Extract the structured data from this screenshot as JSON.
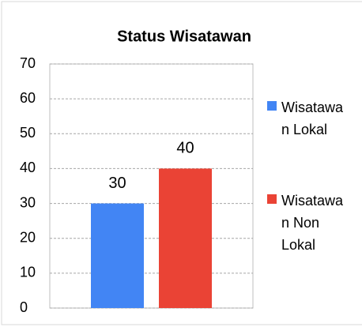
{
  "chart_data": {
    "type": "bar",
    "title": "Status Wisatawan",
    "categories": [
      null
    ],
    "series": [
      {
        "name": "Wisatawan Lokal",
        "color": "#4285f4",
        "values": [
          30
        ]
      },
      {
        "name": "Wisatawan Non Lokal",
        "color": "#ea4335",
        "values": [
          40
        ]
      }
    ],
    "ylim": [
      0,
      70
    ],
    "yticks": [
      0,
      10,
      20,
      30,
      40,
      50,
      60,
      70
    ],
    "grid": true,
    "legend": "right"
  }
}
